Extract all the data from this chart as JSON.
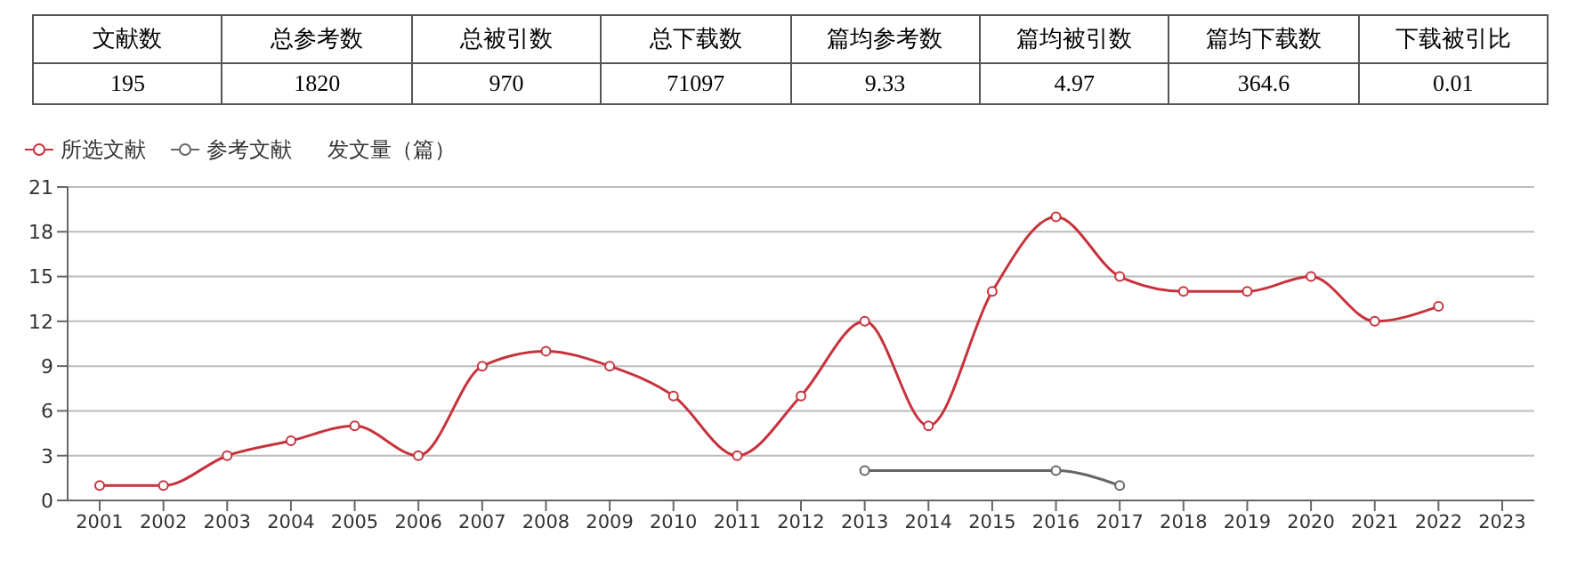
{
  "chart_data": [
    {
      "type": "other",
      "categories": [
        "文献数",
        "总参考数",
        "总被引数",
        "总下载数",
        "篇均参考数",
        "篇均被引数",
        "篇均下载数",
        "下载被引比"
      ],
      "values": [
        195,
        1820,
        970,
        71097,
        9.33,
        4.97,
        364.6,
        0.01
      ],
      "data_labels": true
    },
    {
      "type": "line",
      "ylabel": "发文量（篇）",
      "categories": [
        "2001",
        "2002",
        "2003",
        "2004",
        "2005",
        "2006",
        "2007",
        "2008",
        "2009",
        "2010",
        "2011",
        "2012",
        "2013",
        "2014",
        "2015",
        "2016",
        "2017",
        "2018",
        "2019",
        "2020",
        "2021",
        "2022",
        "2023"
      ],
      "series": [
        {
          "name": "所选文献",
          "color": "#c8323c",
          "values": [
            1,
            1,
            3,
            4,
            5,
            3,
            9,
            10,
            9,
            7,
            3,
            7,
            12,
            5,
            14,
            19,
            15,
            14,
            14,
            15,
            12,
            13,
            null
          ]
        },
        {
          "name": "参考文献",
          "color": "#666666",
          "values": [
            null,
            null,
            null,
            null,
            null,
            null,
            null,
            null,
            null,
            null,
            null,
            null,
            2,
            null,
            null,
            2,
            1,
            null,
            null,
            null,
            null,
            null,
            null
          ]
        }
      ],
      "ylim": [
        0,
        21
      ],
      "yticks": [
        0,
        3,
        6,
        9,
        12,
        15,
        18,
        21
      ],
      "grid": "y",
      "legend": "top left",
      "marker": "circle",
      "line_style": "solid"
    }
  ]
}
